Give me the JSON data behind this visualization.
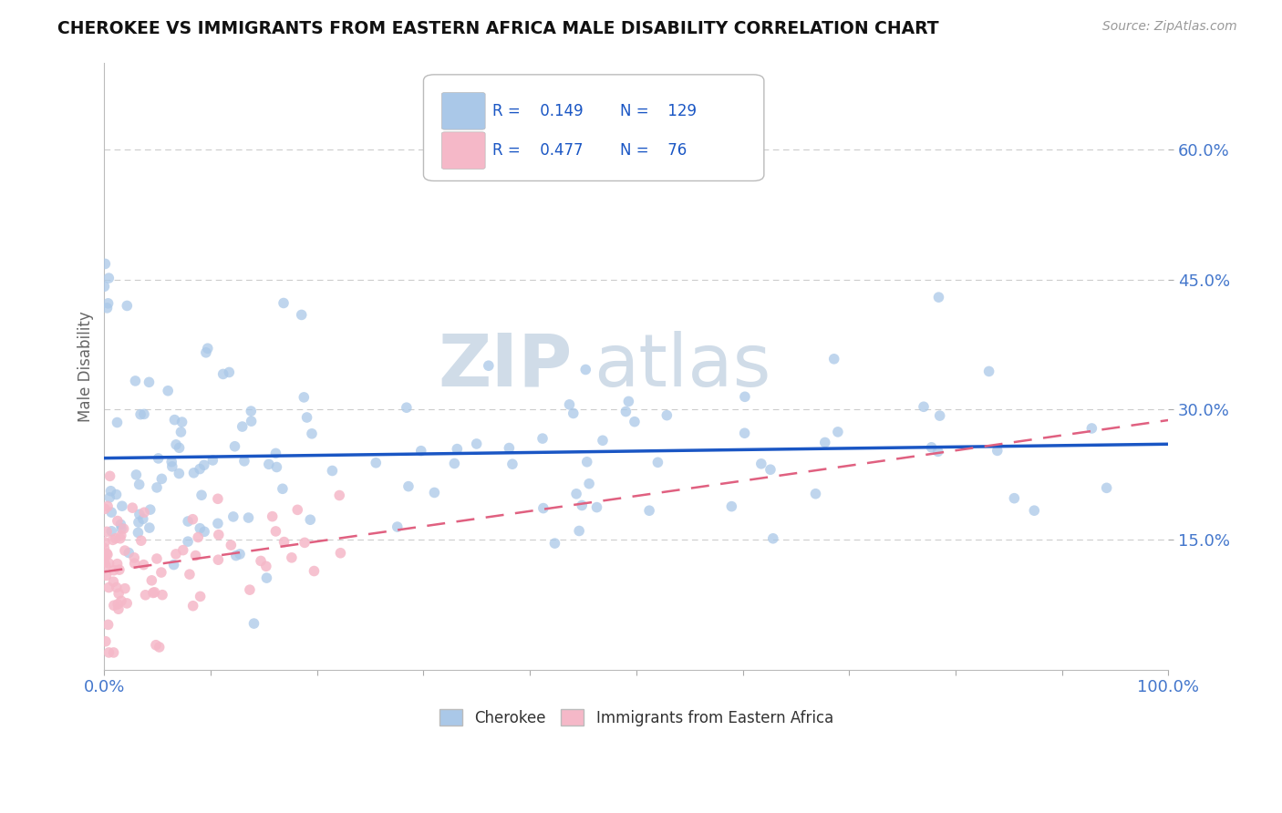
{
  "title": "CHEROKEE VS IMMIGRANTS FROM EASTERN AFRICA MALE DISABILITY CORRELATION CHART",
  "source_text": "Source: ZipAtlas.com",
  "ylabel": "Male Disability",
  "xlim": [
    0.0,
    100.0
  ],
  "ylim": [
    0.0,
    70.0
  ],
  "cherokee_R": 0.149,
  "cherokee_N": 129,
  "immigrants_R": 0.477,
  "immigrants_N": 76,
  "cherokee_color": "#aac8e8",
  "immigrants_color": "#f5b8c8",
  "cherokee_line_color": "#1a56c4",
  "immigrants_line_color": "#e06080",
  "background_color": "#ffffff",
  "grid_color": "#cccccc",
  "title_color": "#111111",
  "axis_tick_color": "#4477cc",
  "watermark_color": "#d0dce8",
  "legend_R_color": "#1a56c4"
}
